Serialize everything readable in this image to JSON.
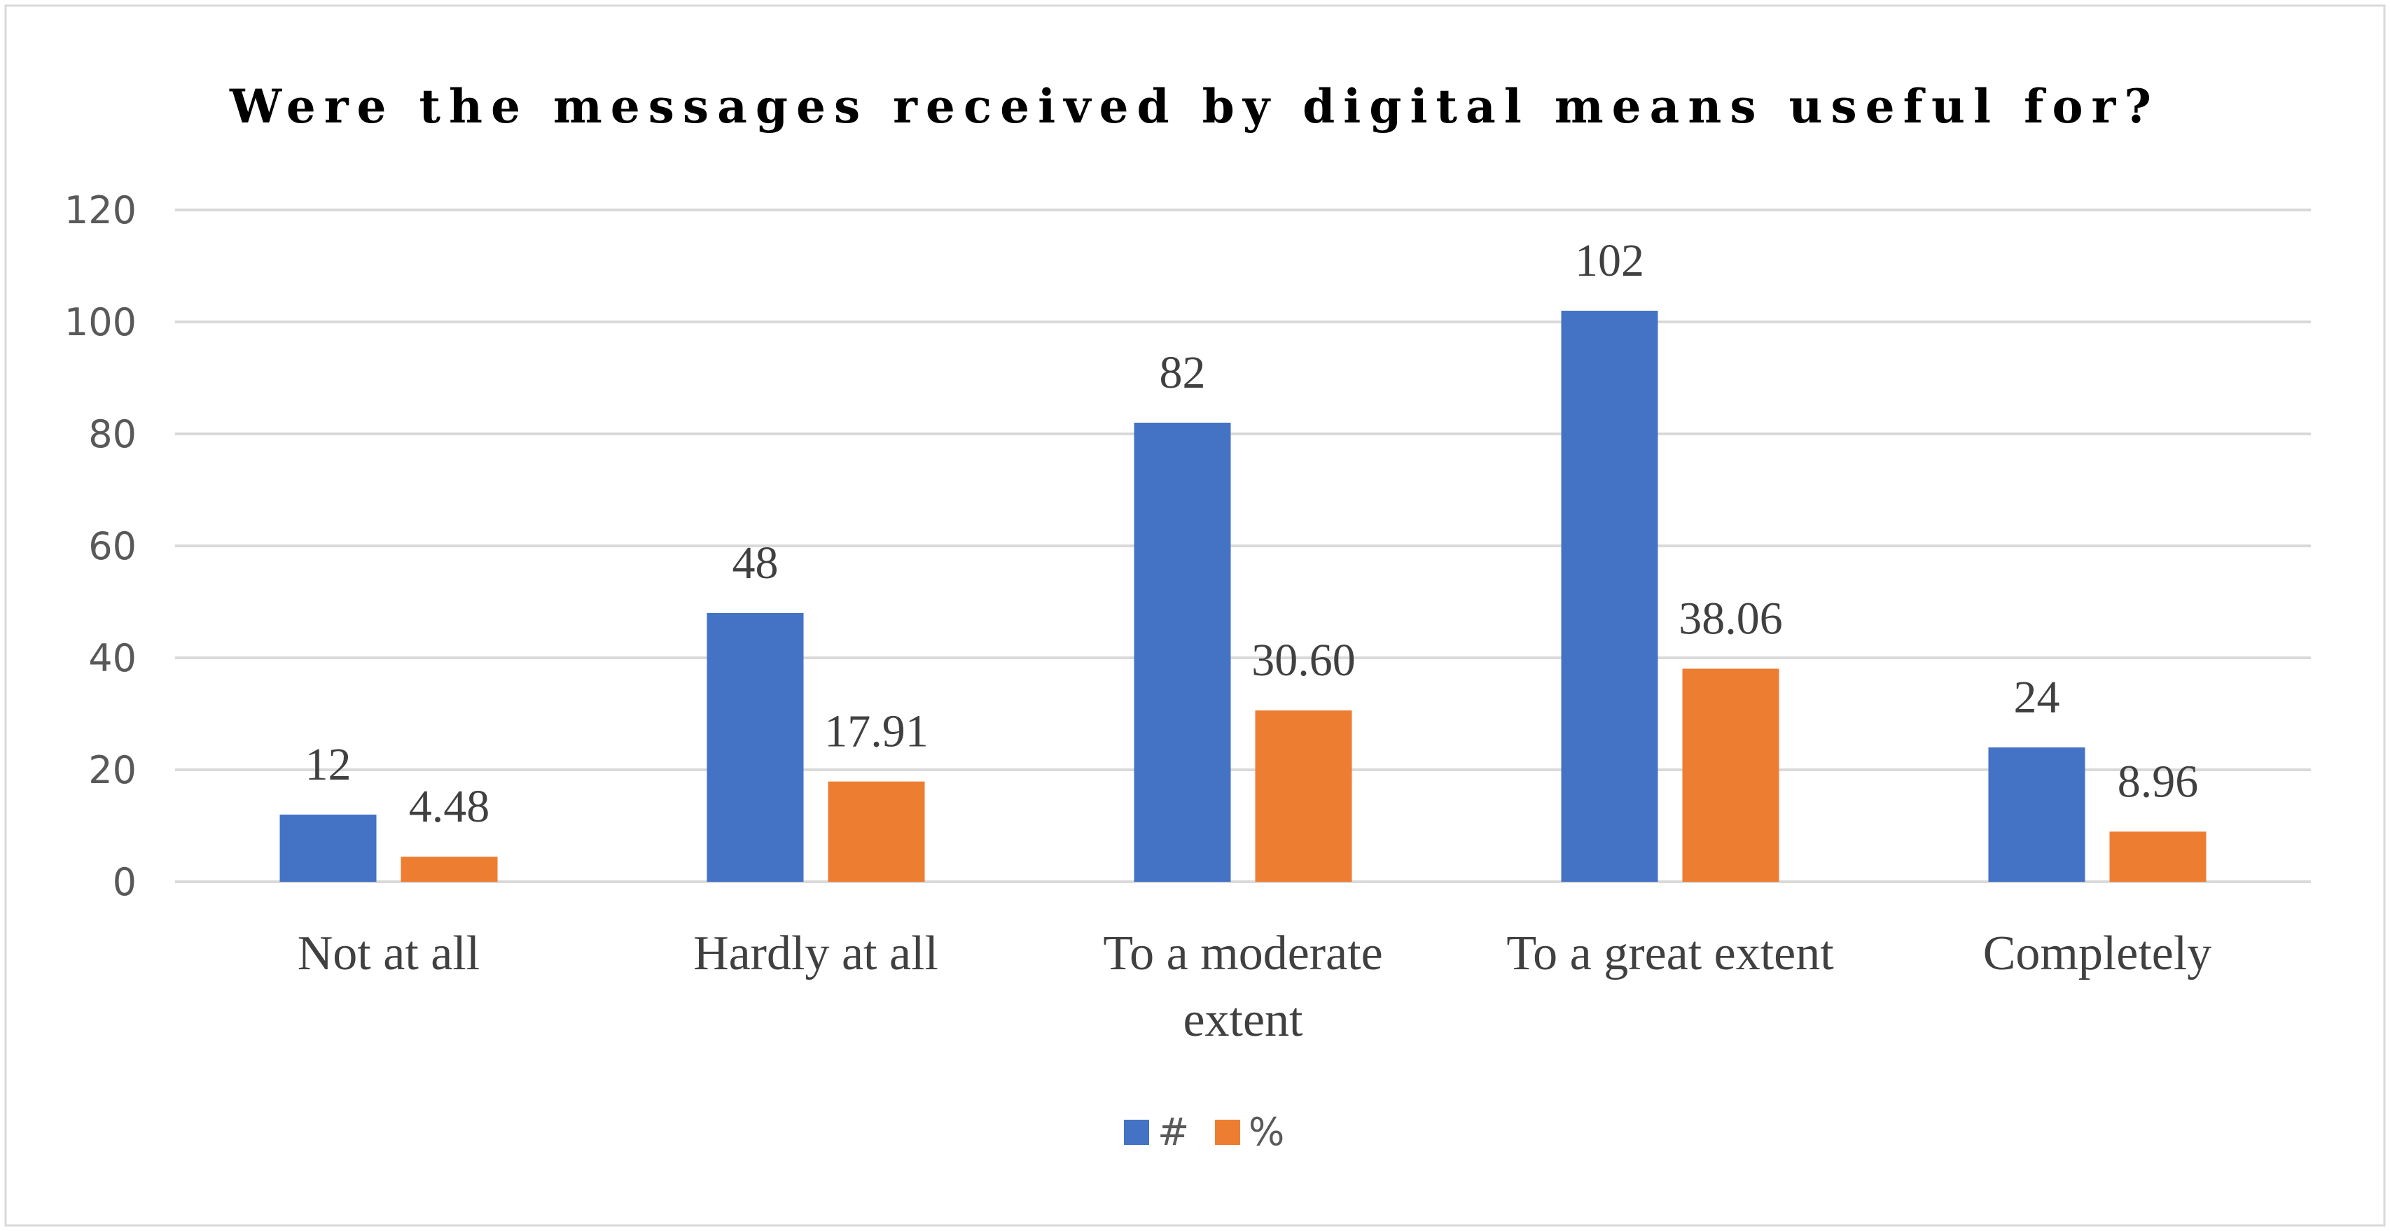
{
  "chart_data": {
    "type": "bar",
    "title": "Were the messages received by digital means useful for?",
    "categories": [
      [
        "Not at all"
      ],
      [
        "Hardly at all"
      ],
      [
        "To a moderate",
        "extent"
      ],
      [
        "To a great extent"
      ],
      [
        "Completely"
      ]
    ],
    "series": [
      {
        "name": "#",
        "color": "#4472C4",
        "values": [
          12,
          48,
          82,
          102,
          24
        ],
        "labels": [
          "12",
          "48",
          "82",
          "102",
          "24"
        ]
      },
      {
        "name": "%",
        "color": "#ED7D31",
        "values": [
          4.48,
          17.91,
          30.6,
          38.06,
          8.96
        ],
        "labels": [
          "4.48",
          "17.91",
          "30.60",
          "38.06",
          "8.96"
        ]
      }
    ],
    "ylim": [
      0,
      120
    ],
    "yticks": [
      0,
      20,
      40,
      60,
      80,
      100,
      120
    ],
    "grid": true,
    "legend_position": "bottom-center"
  }
}
